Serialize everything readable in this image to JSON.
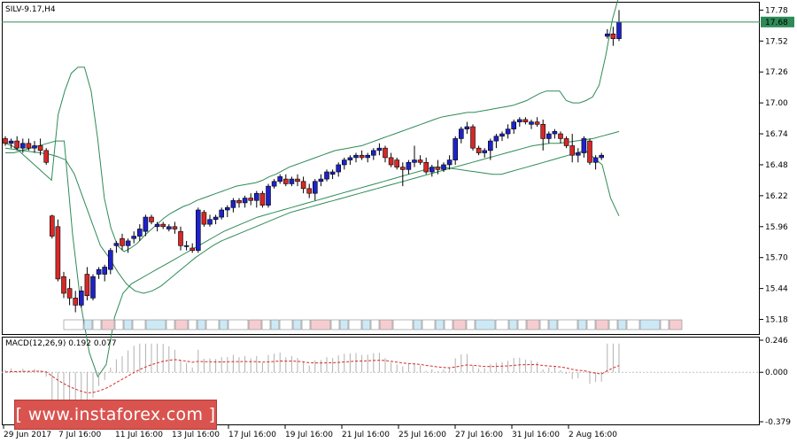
{
  "chart_data": [
    {
      "type": "candlestick",
      "title": "SILV-9.17,H4",
      "ylim": [
        15.05,
        17.85
      ],
      "y_ticks": [
        "17.78",
        "17.52",
        "17.26",
        "17.00",
        "16.74",
        "16.48",
        "16.22",
        "15.96",
        "15.70",
        "15.44",
        "15.18"
      ],
      "current_price": "17.68",
      "current_price_value": 17.68,
      "x_tick_labels": [
        "29 Jun 2017",
        "7 Jul 16:00",
        "11 Jul 16:00",
        "13 Jul 16:00",
        "17 Jul 16:00",
        "19 Jul 16:00",
        "21 Jul 16:00",
        "25 Jul 16:00",
        "27 Jul 16:00",
        "31 Jul 16:00",
        "2 Aug 16:00"
      ],
      "candles": [
        [
          16.7,
          16.72,
          16.64,
          16.66
        ],
        [
          16.66,
          16.7,
          16.62,
          16.68
        ],
        [
          16.68,
          16.72,
          16.6,
          16.62
        ],
        [
          16.62,
          16.7,
          16.58,
          16.66
        ],
        [
          16.66,
          16.7,
          16.6,
          16.62
        ],
        [
          16.62,
          16.68,
          16.58,
          16.64
        ],
        [
          16.64,
          16.7,
          16.56,
          16.6
        ],
        [
          16.6,
          16.62,
          16.48,
          16.5
        ],
        [
          16.05,
          16.06,
          15.86,
          15.88
        ],
        [
          15.96,
          16.02,
          15.5,
          15.52
        ],
        [
          15.54,
          15.58,
          15.36,
          15.4
        ],
        [
          15.44,
          15.52,
          15.3,
          15.36
        ],
        [
          15.36,
          15.42,
          15.24,
          15.3
        ],
        [
          15.3,
          15.46,
          15.28,
          15.42
        ],
        [
          15.56,
          15.62,
          15.34,
          15.38
        ],
        [
          15.36,
          15.56,
          15.34,
          15.54
        ],
        [
          15.56,
          15.62,
          15.52,
          15.6
        ],
        [
          15.56,
          15.64,
          15.5,
          15.62
        ],
        [
          15.6,
          15.78,
          15.56,
          15.76
        ],
        [
          15.8,
          15.84,
          15.74,
          15.82
        ],
        [
          15.86,
          15.9,
          15.76,
          15.8
        ],
        [
          15.8,
          15.86,
          15.74,
          15.84
        ],
        [
          15.86,
          15.92,
          15.82,
          15.88
        ],
        [
          15.88,
          15.98,
          15.84,
          15.94
        ],
        [
          15.92,
          16.06,
          15.88,
          16.04
        ],
        [
          16.04,
          16.06,
          15.98,
          16.0
        ],
        [
          15.96,
          16.0,
          15.92,
          15.98
        ],
        [
          15.98,
          16.0,
          15.94,
          15.96
        ],
        [
          15.94,
          15.98,
          15.92,
          15.96
        ],
        [
          15.96,
          16.0,
          15.9,
          15.94
        ],
        [
          15.92,
          15.96,
          15.76,
          15.8
        ],
        [
          15.8,
          15.84,
          15.76,
          15.8
        ],
        [
          15.78,
          15.82,
          15.74,
          15.76
        ],
        [
          15.76,
          16.12,
          15.74,
          16.1
        ],
        [
          16.08,
          16.1,
          15.96,
          15.98
        ],
        [
          15.98,
          16.06,
          15.96,
          16.02
        ],
        [
          16.02,
          16.06,
          15.98,
          16.04
        ],
        [
          16.04,
          16.12,
          16.02,
          16.1
        ],
        [
          16.1,
          16.14,
          16.04,
          16.12
        ],
        [
          16.12,
          16.2,
          16.08,
          16.18
        ],
        [
          16.18,
          16.2,
          16.12,
          16.16
        ],
        [
          16.16,
          16.22,
          16.12,
          16.2
        ],
        [
          16.2,
          16.24,
          16.14,
          16.18
        ],
        [
          16.18,
          16.26,
          16.12,
          16.24
        ],
        [
          16.24,
          16.26,
          16.12,
          16.14
        ],
        [
          16.14,
          16.32,
          16.12,
          16.3
        ],
        [
          16.3,
          16.36,
          16.28,
          16.34
        ],
        [
          16.34,
          16.4,
          16.32,
          16.38
        ],
        [
          16.36,
          16.4,
          16.3,
          16.32
        ],
        [
          16.32,
          16.38,
          16.3,
          16.36
        ],
        [
          16.36,
          16.4,
          16.3,
          16.34
        ],
        [
          16.34,
          16.38,
          16.24,
          16.28
        ],
        [
          16.28,
          16.32,
          16.2,
          16.24
        ],
        [
          16.24,
          16.36,
          16.18,
          16.34
        ],
        [
          16.34,
          16.4,
          16.3,
          16.36
        ],
        [
          16.36,
          16.44,
          16.34,
          16.42
        ],
        [
          16.4,
          16.44,
          16.36,
          16.42
        ],
        [
          16.42,
          16.5,
          16.38,
          16.48
        ],
        [
          16.48,
          16.54,
          16.44,
          16.52
        ],
        [
          16.52,
          16.56,
          16.48,
          16.54
        ],
        [
          16.54,
          16.58,
          16.5,
          16.56
        ],
        [
          16.56,
          16.6,
          16.52,
          16.54
        ],
        [
          16.54,
          16.58,
          16.5,
          16.56
        ],
        [
          16.56,
          16.62,
          16.52,
          16.6
        ],
        [
          16.6,
          16.66,
          16.56,
          16.62
        ],
        [
          16.62,
          16.64,
          16.5,
          16.54
        ],
        [
          16.54,
          16.58,
          16.46,
          16.48
        ],
        [
          16.52,
          16.54,
          16.44,
          16.46
        ],
        [
          16.46,
          16.5,
          16.3,
          16.44
        ],
        [
          16.44,
          16.52,
          16.4,
          16.5
        ],
        [
          16.5,
          16.64,
          16.46,
          16.52
        ],
        [
          16.52,
          16.56,
          16.48,
          16.5
        ],
        [
          16.5,
          16.54,
          16.4,
          16.42
        ],
        [
          16.42,
          16.48,
          16.38,
          16.46
        ],
        [
          16.46,
          16.52,
          16.4,
          16.44
        ],
        [
          16.44,
          16.5,
          16.42,
          16.48
        ],
        [
          16.48,
          16.56,
          16.44,
          16.52
        ],
        [
          16.52,
          16.72,
          16.48,
          16.7
        ],
        [
          16.7,
          16.8,
          16.66,
          16.78
        ],
        [
          16.78,
          16.84,
          16.74,
          16.8
        ],
        [
          16.8,
          16.82,
          16.6,
          16.62
        ],
        [
          16.62,
          16.64,
          16.56,
          16.58
        ],
        [
          16.58,
          16.62,
          16.54,
          16.6
        ],
        [
          16.6,
          16.7,
          16.52,
          16.68
        ],
        [
          16.68,
          16.74,
          16.62,
          16.72
        ],
        [
          16.72,
          16.76,
          16.68,
          16.74
        ],
        [
          16.74,
          16.82,
          16.7,
          16.78
        ],
        [
          16.78,
          16.86,
          16.74,
          16.84
        ],
        [
          16.84,
          16.88,
          16.8,
          16.86
        ],
        [
          16.86,
          16.88,
          16.82,
          16.84
        ],
        [
          16.82,
          16.86,
          16.78,
          16.84
        ],
        [
          16.84,
          16.88,
          16.8,
          16.82
        ],
        [
          16.82,
          16.86,
          16.6,
          16.7
        ],
        [
          16.7,
          16.76,
          16.66,
          16.74
        ],
        [
          16.74,
          16.78,
          16.7,
          16.76
        ],
        [
          16.74,
          16.76,
          16.66,
          16.7
        ],
        [
          16.7,
          16.72,
          16.62,
          16.64
        ],
        [
          16.64,
          16.74,
          16.5,
          16.56
        ],
        [
          16.56,
          16.62,
          16.5,
          16.58
        ],
        [
          16.58,
          16.72,
          16.54,
          16.7
        ],
        [
          16.68,
          16.7,
          16.48,
          16.5
        ],
        [
          16.5,
          16.56,
          16.44,
          16.54
        ],
        [
          16.54,
          16.58,
          16.52,
          16.56
        ],
        [
          17.56,
          17.62,
          17.54,
          17.58
        ],
        [
          17.58,
          17.64,
          17.48,
          17.54
        ],
        [
          17.54,
          17.78,
          17.52,
          17.68
        ]
      ],
      "upper_band": [
        16.66,
        16.64,
        16.6,
        16.55,
        16.5,
        16.45,
        16.4,
        16.35,
        16.9,
        17.1,
        17.25,
        17.3,
        17.3,
        17.1,
        16.7,
        16.2,
        15.95,
        15.8,
        15.75,
        15.78,
        15.82,
        15.88,
        15.93,
        15.98,
        16.03,
        16.07,
        16.1,
        16.13,
        16.15,
        16.18,
        16.2,
        16.22,
        16.24,
        16.26,
        16.28,
        16.3,
        16.31,
        16.32,
        16.33,
        16.35,
        16.38,
        16.4,
        16.43,
        16.46,
        16.48,
        16.5,
        16.52,
        16.54,
        16.56,
        16.58,
        16.6,
        16.61,
        16.62,
        16.63,
        16.64,
        16.66,
        16.68,
        16.7,
        16.72,
        16.74,
        16.76,
        16.78,
        16.8,
        16.82,
        16.84,
        16.86,
        16.88,
        16.89,
        16.9,
        16.91,
        16.92,
        16.92,
        16.93,
        16.94,
        16.95,
        16.96,
        16.97,
        16.98,
        17.0,
        17.02,
        17.05,
        17.08,
        17.1,
        17.1,
        17.1,
        17.02,
        17.0,
        17.0,
        17.02,
        17.05,
        17.15,
        17.4,
        17.7,
        17.9
      ],
      "middle_band": [
        16.62,
        16.61,
        16.6,
        16.59,
        16.58,
        16.57,
        16.55,
        16.52,
        16.4,
        16.2,
        16.0,
        15.8,
        15.7,
        15.58,
        15.48,
        15.42,
        15.4,
        15.42,
        15.46,
        15.52,
        15.58,
        15.64,
        15.7,
        15.75,
        15.8,
        15.84,
        15.87,
        15.9,
        15.93,
        15.96,
        15.99,
        16.02,
        16.05,
        16.08,
        16.1,
        16.12,
        16.14,
        16.16,
        16.18,
        16.2,
        16.22,
        16.24,
        16.26,
        16.28,
        16.3,
        16.32,
        16.34,
        16.36,
        16.38,
        16.4,
        16.42,
        16.44,
        16.46,
        16.48,
        16.5,
        16.52,
        16.54,
        16.56,
        16.58,
        16.6,
        16.62,
        16.64,
        16.65,
        16.66,
        16.66,
        16.67,
        16.68,
        16.69,
        16.7,
        16.72,
        16.74,
        16.76
      ],
      "lower_band": [
        16.58,
        16.58,
        16.6,
        16.62,
        16.64,
        16.66,
        16.68,
        16.68,
        15.9,
        15.3,
        14.9,
        14.7,
        14.8,
        15.2,
        15.4,
        15.48,
        15.52,
        15.56,
        15.6,
        15.64,
        15.68,
        15.72,
        15.76,
        15.8,
        15.84,
        15.88,
        15.92,
        15.95,
        15.98,
        16.01,
        16.04,
        16.06,
        16.08,
        16.1,
        16.12,
        16.14,
        16.16,
        16.18,
        16.2,
        16.22,
        16.24,
        16.26,
        16.28,
        16.3,
        16.32,
        16.34,
        16.36,
        16.38,
        16.4,
        16.42,
        16.44,
        16.46,
        16.46,
        16.45,
        16.44,
        16.43,
        16.42,
        16.41,
        16.4,
        16.4,
        16.42,
        16.44,
        16.46,
        16.48,
        16.5,
        16.52,
        16.54,
        16.56,
        16.58,
        16.6,
        16.54,
        16.48,
        16.2,
        16.05
      ]
    },
    {
      "type": "histogram",
      "title": "MACD(12,26,9) 0.192 0.077",
      "ylim": [
        -0.379,
        0.246
      ],
      "y_ticks": [
        "0.246",
        "0.000",
        "-0.379"
      ]
    }
  ],
  "watermark": "[ www.instaforex.com ]"
}
